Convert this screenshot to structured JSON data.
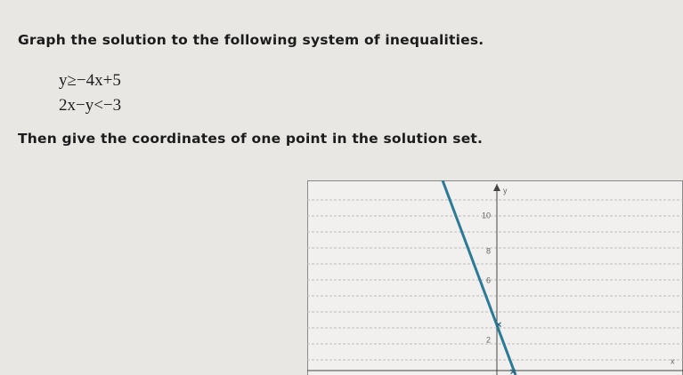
{
  "question": {
    "prompt": "Graph the solution to the following system of inequalities.",
    "inequalities": [
      "y≥−4x+5",
      "2x−y<−3"
    ],
    "instruction": "Then give the coordinates of one point in the solution set."
  },
  "graph": {
    "axis_labels": {
      "x": "x",
      "y": "y"
    },
    "y_tick_labels": [
      "10",
      "8",
      "6",
      "2"
    ]
  }
}
